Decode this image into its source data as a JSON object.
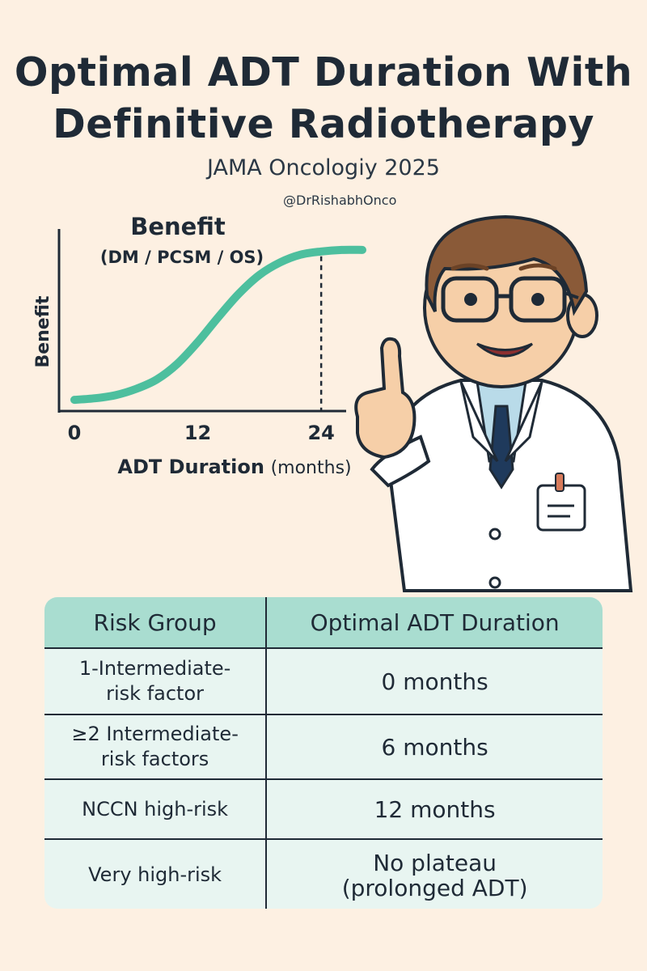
{
  "title_line1": "Optimal ADT Duration With",
  "title_line2": "Definitive Radiotherapy",
  "subtitle": "JAMA Oncologiy 2025",
  "handle": "@DrRishabhOnco",
  "chart_data": {
    "type": "line",
    "title": "Benefit",
    "subtitle": "(DM / PCSM / OS)",
    "xlabel": "ADT Duration",
    "xlabel_unit": "(months)",
    "ylabel": "Benefit",
    "xticks": [
      "0",
      "12",
      "24"
    ],
    "xlim": [
      0,
      28
    ],
    "ylim": [
      0,
      1
    ],
    "plateau_marker_x": 24,
    "series": [
      {
        "color": "#4dbf9e",
        "x": [
          0,
          2,
          4,
          6,
          8,
          10,
          12,
          14,
          16,
          18,
          20,
          22,
          24,
          26,
          28
        ],
        "y": [
          0.02,
          0.03,
          0.05,
          0.09,
          0.15,
          0.25,
          0.39,
          0.55,
          0.7,
          0.82,
          0.9,
          0.95,
          0.97,
          0.98,
          0.98
        ]
      }
    ],
    "grid": false
  },
  "table": {
    "headers": [
      "Risk Group",
      "Optimal ADT Duration"
    ],
    "rows": [
      {
        "group": [
          "1-Intermediate-",
          "risk factor"
        ],
        "duration": "0 months"
      },
      {
        "group": [
          "≥2 Intermediate-",
          "risk factors"
        ],
        "duration": "6 months"
      },
      {
        "group": [
          "NCCN high-risk"
        ],
        "duration": "12 months"
      },
      {
        "group": [
          "Very high-risk"
        ],
        "duration": [
          "No plateau",
          "(prolonged ADT)"
        ]
      }
    ]
  },
  "illustration": {
    "icon": "doctor-pointing-illustration"
  },
  "colors": {
    "background": "#fdf0e2",
    "accent": "#4dbf9e",
    "header": "#a9ddd0",
    "text": "#1f2a36"
  }
}
